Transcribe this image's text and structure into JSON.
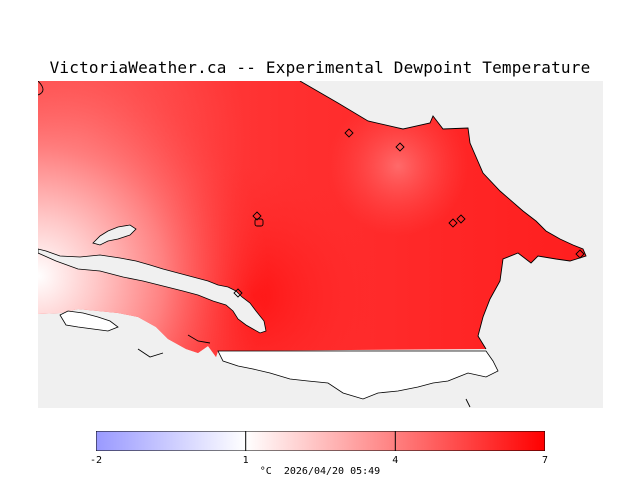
{
  "title": "VictoriaWeather.ca -- Experimental Dewpoint Temperature",
  "colorbar": {
    "ticks": [
      "-2",
      "1",
      "4",
      "7"
    ],
    "tick_values": [
      -2,
      1,
      4,
      7
    ],
    "unit": "°C",
    "timestamp": "2026/04/20 05:49",
    "colors": {
      "min": "#9999ff",
      "mid": "#ffffff",
      "max": "#ff0000"
    }
  },
  "map": {
    "land_background": "#f0f0f0",
    "station_marker_icon": "diamond-icon"
  }
}
